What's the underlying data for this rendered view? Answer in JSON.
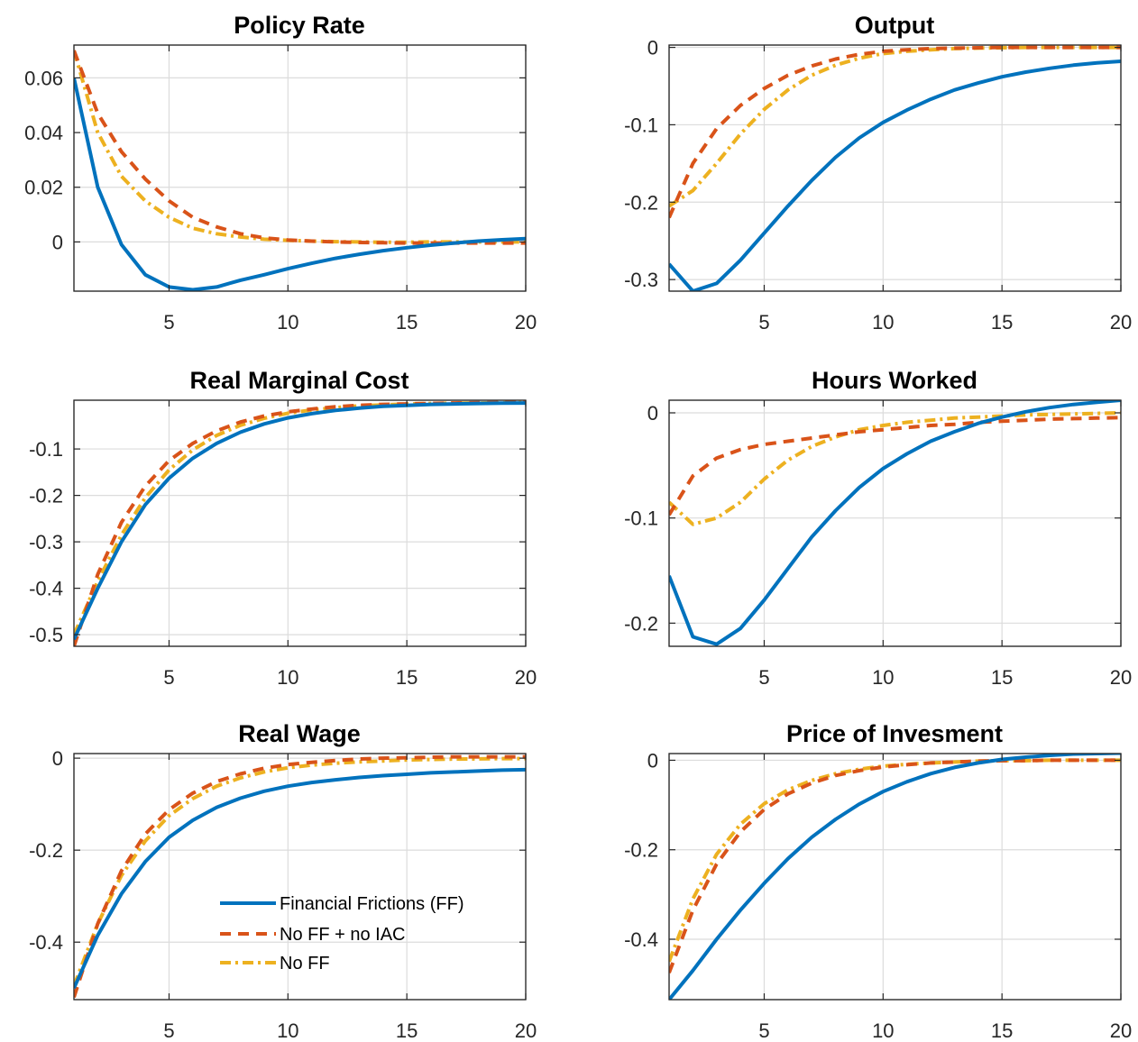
{
  "chart_data": [
    {
      "type": "line",
      "title": "Policy Rate",
      "xlim": [
        1,
        20
      ],
      "ylim": [
        -0.018,
        0.072
      ],
      "xticks": [
        5,
        10,
        15,
        20
      ],
      "xtick_labels": [
        "5",
        "10",
        "15",
        "20"
      ],
      "yticks": [
        0,
        0.02,
        0.04,
        0.06
      ],
      "ytick_labels": [
        "0",
        "0.02",
        "0.04",
        "0.06"
      ],
      "grid": true,
      "x": [
        1,
        2,
        3,
        4,
        5,
        6,
        7,
        8,
        9,
        10,
        11,
        12,
        13,
        14,
        15,
        16,
        17,
        18,
        19,
        20
      ],
      "series": [
        {
          "name": "Financial Frictions (FF)",
          "values": [
            0.06,
            0.02,
            -0.001,
            -0.012,
            -0.0165,
            -0.0175,
            -0.0165,
            -0.014,
            -0.012,
            -0.0098,
            -0.0078,
            -0.006,
            -0.0045,
            -0.0032,
            -0.0021,
            -0.0012,
            -0.0004,
            0.0003,
            0.0008,
            0.0012
          ]
        },
        {
          "name": "No FF + no IAC",
          "values": [
            0.07,
            0.047,
            0.033,
            0.023,
            0.015,
            0.009,
            0.0055,
            0.003,
            0.0015,
            0.0007,
            0.0003,
            0.0,
            -0.0002,
            -0.0003,
            -0.0004,
            -0.0004,
            -0.0004,
            -0.0004,
            -0.0004,
            -0.0004
          ]
        },
        {
          "name": "No FF",
          "values": [
            0.07,
            0.04,
            0.024,
            0.015,
            0.009,
            0.005,
            0.003,
            0.0018,
            0.001,
            0.0006,
            0.0003,
            0.0001,
            0.0,
            -0.0001,
            -0.0001,
            0.0,
            0.0,
            0.0,
            0.0,
            0.0
          ]
        }
      ]
    },
    {
      "type": "line",
      "title": "Output",
      "xlim": [
        1,
        20
      ],
      "ylim": [
        -0.315,
        0.003
      ],
      "xticks": [
        5,
        10,
        15,
        20
      ],
      "xtick_labels": [
        "5",
        "10",
        "15",
        "20"
      ],
      "yticks": [
        -0.3,
        -0.2,
        -0.1,
        0
      ],
      "ytick_labels": [
        "-0.3",
        "-0.2",
        "-0.1",
        "0"
      ],
      "grid": true,
      "x": [
        1,
        2,
        3,
        4,
        5,
        6,
        7,
        8,
        9,
        10,
        11,
        12,
        13,
        14,
        15,
        16,
        17,
        18,
        19,
        20
      ],
      "series": [
        {
          "name": "Financial Frictions (FF)",
          "values": [
            -0.28,
            -0.315,
            -0.305,
            -0.275,
            -0.24,
            -0.205,
            -0.172,
            -0.142,
            -0.117,
            -0.097,
            -0.081,
            -0.067,
            -0.055,
            -0.046,
            -0.038,
            -0.032,
            -0.027,
            -0.023,
            -0.02,
            -0.018
          ]
        },
        {
          "name": "No FF + no IAC",
          "values": [
            -0.22,
            -0.15,
            -0.105,
            -0.075,
            -0.053,
            -0.036,
            -0.024,
            -0.015,
            -0.009,
            -0.005,
            -0.003,
            -0.0015,
            -0.001,
            -0.0005,
            0.0,
            0.0,
            0.0,
            0.0,
            0.0,
            0.0
          ]
        },
        {
          "name": "No FF",
          "values": [
            -0.205,
            -0.185,
            -0.15,
            -0.112,
            -0.08,
            -0.055,
            -0.036,
            -0.023,
            -0.014,
            -0.008,
            -0.005,
            -0.003,
            -0.0015,
            -0.001,
            -0.0005,
            0.0,
            0.0,
            0.0,
            0.0,
            0.0
          ]
        }
      ]
    },
    {
      "type": "line",
      "title": "Real Marginal Cost",
      "xlim": [
        1,
        20
      ],
      "ylim": [
        -0.525,
        0.005
      ],
      "xticks": [
        5,
        10,
        15,
        20
      ],
      "xtick_labels": [
        "5",
        "10",
        "15",
        "20"
      ],
      "yticks": [
        -0.5,
        -0.4,
        -0.3,
        -0.2,
        -0.1
      ],
      "ytick_labels": [
        "-0.5",
        "-0.4",
        "-0.3",
        "-0.2",
        "-0.1"
      ],
      "grid": true,
      "x": [
        1,
        2,
        3,
        4,
        5,
        6,
        7,
        8,
        9,
        10,
        11,
        12,
        13,
        14,
        15,
        16,
        17,
        18,
        19,
        20
      ],
      "series": [
        {
          "name": "Financial Frictions (FF)",
          "values": [
            -0.51,
            -0.4,
            -0.3,
            -0.22,
            -0.163,
            -0.12,
            -0.088,
            -0.064,
            -0.046,
            -0.033,
            -0.024,
            -0.017,
            -0.012,
            -0.008,
            -0.006,
            -0.004,
            -0.003,
            -0.002,
            -0.0015,
            -0.001
          ]
        },
        {
          "name": "No FF + no IAC",
          "values": [
            -0.525,
            -0.37,
            -0.258,
            -0.18,
            -0.125,
            -0.088,
            -0.061,
            -0.042,
            -0.029,
            -0.02,
            -0.014,
            -0.009,
            -0.006,
            -0.004,
            -0.003,
            -0.002,
            -0.001,
            -0.0005,
            0.0,
            0.0
          ]
        },
        {
          "name": "No FF",
          "values": [
            -0.5,
            -0.385,
            -0.285,
            -0.205,
            -0.145,
            -0.102,
            -0.071,
            -0.049,
            -0.034,
            -0.023,
            -0.016,
            -0.011,
            -0.007,
            -0.005,
            -0.003,
            -0.002,
            -0.0015,
            -0.001,
            -0.0005,
            0.0
          ]
        }
      ]
    },
    {
      "type": "line",
      "title": "Hours Worked",
      "xlim": [
        1,
        20
      ],
      "ylim": [
        -0.222,
        0.012
      ],
      "xticks": [
        5,
        10,
        15,
        20
      ],
      "xtick_labels": [
        "5",
        "10",
        "15",
        "20"
      ],
      "yticks": [
        -0.2,
        -0.1,
        0
      ],
      "ytick_labels": [
        "-0.2",
        "-0.1",
        "0"
      ],
      "grid": true,
      "x": [
        1,
        2,
        3,
        4,
        5,
        6,
        7,
        8,
        9,
        10,
        11,
        12,
        13,
        14,
        15,
        16,
        17,
        18,
        19,
        20
      ],
      "series": [
        {
          "name": "Financial Frictions (FF)",
          "values": [
            -0.155,
            -0.213,
            -0.22,
            -0.205,
            -0.178,
            -0.148,
            -0.118,
            -0.093,
            -0.071,
            -0.053,
            -0.039,
            -0.027,
            -0.018,
            -0.01,
            -0.004,
            0.001,
            0.005,
            0.008,
            0.01,
            0.012
          ]
        },
        {
          "name": "No FF + no IAC",
          "values": [
            -0.097,
            -0.06,
            -0.043,
            -0.035,
            -0.03,
            -0.027,
            -0.024,
            -0.021,
            -0.018,
            -0.016,
            -0.014,
            -0.012,
            -0.011,
            -0.009,
            -0.008,
            -0.007,
            -0.006,
            -0.0055,
            -0.005,
            -0.0045
          ]
        },
        {
          "name": "No FF",
          "values": [
            -0.085,
            -0.106,
            -0.1,
            -0.085,
            -0.063,
            -0.045,
            -0.032,
            -0.023,
            -0.016,
            -0.012,
            -0.009,
            -0.007,
            -0.005,
            -0.004,
            -0.003,
            -0.002,
            -0.0015,
            -0.001,
            -0.0005,
            0.0
          ]
        }
      ]
    },
    {
      "type": "line",
      "title": "Real Wage",
      "xlim": [
        1,
        20
      ],
      "ylim": [
        -0.525,
        0.01
      ],
      "xticks": [
        5,
        10,
        15,
        20
      ],
      "xtick_labels": [
        "5",
        "10",
        "15",
        "20"
      ],
      "yticks": [
        -0.4,
        -0.2,
        0
      ],
      "ytick_labels": [
        "-0.4",
        "-0.2",
        "0"
      ],
      "grid": true,
      "legend_position": "bottom-right",
      "x": [
        1,
        2,
        3,
        4,
        5,
        6,
        7,
        8,
        9,
        10,
        11,
        12,
        13,
        14,
        15,
        16,
        17,
        18,
        19,
        20
      ],
      "series": [
        {
          "name": "Financial Frictions (FF)",
          "values": [
            -0.5,
            -0.385,
            -0.295,
            -0.225,
            -0.172,
            -0.135,
            -0.107,
            -0.087,
            -0.072,
            -0.061,
            -0.053,
            -0.047,
            -0.042,
            -0.038,
            -0.035,
            -0.032,
            -0.03,
            -0.028,
            -0.026,
            -0.025
          ]
        },
        {
          "name": "No FF + no IAC",
          "values": [
            -0.52,
            -0.36,
            -0.245,
            -0.165,
            -0.112,
            -0.076,
            -0.051,
            -0.034,
            -0.022,
            -0.014,
            -0.009,
            -0.005,
            -0.002,
            0.0,
            0.001,
            0.002,
            0.003,
            0.003,
            0.003,
            0.003
          ]
        },
        {
          "name": "No FF",
          "values": [
            -0.495,
            -0.36,
            -0.255,
            -0.18,
            -0.125,
            -0.088,
            -0.061,
            -0.043,
            -0.03,
            -0.021,
            -0.015,
            -0.011,
            -0.008,
            -0.006,
            -0.004,
            -0.003,
            -0.002,
            -0.0015,
            -0.001,
            -0.001
          ]
        }
      ]
    },
    {
      "type": "line",
      "title": "Price of Invesment",
      "xlim": [
        1,
        20
      ],
      "ylim": [
        -0.535,
        0.015
      ],
      "xticks": [
        5,
        10,
        15,
        20
      ],
      "xtick_labels": [
        "5",
        "10",
        "15",
        "20"
      ],
      "yticks": [
        -0.4,
        -0.2,
        0
      ],
      "ytick_labels": [
        "-0.4",
        "-0.2",
        "0"
      ],
      "grid": true,
      "x": [
        1,
        2,
        3,
        4,
        5,
        6,
        7,
        8,
        9,
        10,
        11,
        12,
        13,
        14,
        15,
        16,
        17,
        18,
        19,
        20
      ],
      "series": [
        {
          "name": "Financial Frictions (FF)",
          "values": [
            -0.535,
            -0.47,
            -0.4,
            -0.335,
            -0.275,
            -0.22,
            -0.172,
            -0.132,
            -0.098,
            -0.07,
            -0.048,
            -0.03,
            -0.016,
            -0.006,
            0.002,
            0.007,
            0.011,
            0.014,
            0.015,
            0.016
          ]
        },
        {
          "name": "No FF + no IAC",
          "values": [
            -0.475,
            -0.335,
            -0.232,
            -0.16,
            -0.11,
            -0.075,
            -0.051,
            -0.034,
            -0.023,
            -0.015,
            -0.01,
            -0.006,
            -0.004,
            -0.002,
            -0.001,
            -0.001,
            0.0,
            0.0,
            0.0,
            0.0
          ]
        },
        {
          "name": "No FF",
          "values": [
            -0.45,
            -0.31,
            -0.21,
            -0.143,
            -0.097,
            -0.066,
            -0.045,
            -0.03,
            -0.02,
            -0.013,
            -0.009,
            -0.006,
            -0.004,
            -0.002,
            -0.001,
            -0.001,
            0.0,
            0.0,
            0.0,
            0.0
          ]
        }
      ]
    }
  ],
  "legend": {
    "items": [
      {
        "label": "Financial Frictions (FF)",
        "color": "#0072BD",
        "dash": "solid"
      },
      {
        "label": "No FF + no IAC",
        "color": "#D95319",
        "dash": "dashed"
      },
      {
        "label": "No FF",
        "color": "#EDB120",
        "dash": "dashdot"
      }
    ]
  },
  "colors": {
    "ff": "#0072BD",
    "noff_noiac": "#D95319",
    "noff": "#EDB120"
  }
}
